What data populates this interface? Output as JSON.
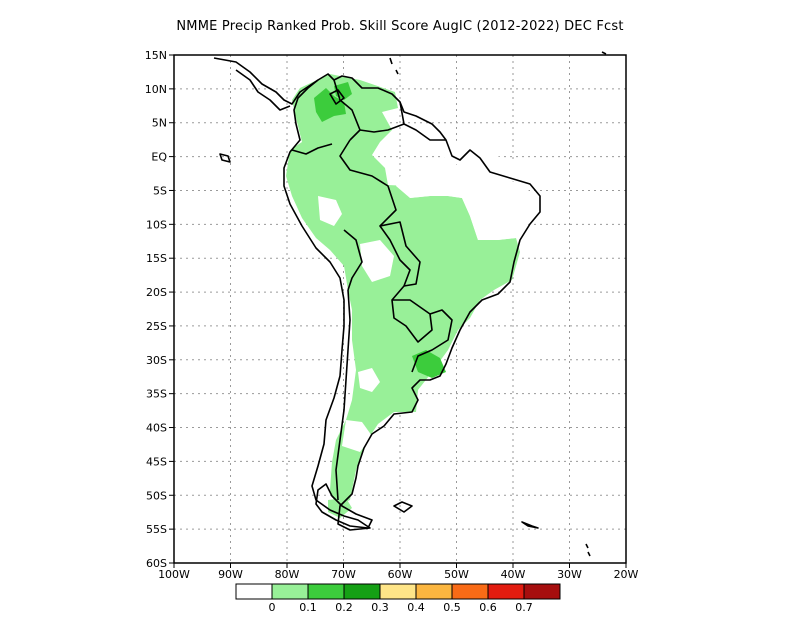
{
  "title": "NMME Precip Ranked Prob. Skill Score AugIC (2012-2022) DEC Fcst",
  "lat_labels": [
    "15N",
    "10N",
    "5N",
    "EQ",
    "5S",
    "10S",
    "15S",
    "20S",
    "25S",
    "30S",
    "35S",
    "40S",
    "45S",
    "50S",
    "55S",
    "60S"
  ],
  "lon_labels": [
    "100W",
    "90W",
    "80W",
    "70W",
    "60W",
    "50W",
    "40W",
    "30W",
    "20W"
  ],
  "colorbar": {
    "colors": [
      "#ffffff",
      "#98f098",
      "#3ccc3c",
      "#15a015",
      "#fee588",
      "#fbb640",
      "#f96b16",
      "#e21c10",
      "#a60e0e"
    ],
    "labels": [
      "0",
      "0.1",
      "0.2",
      "0.3",
      "0.4",
      "0.5",
      "0.6",
      "0.7"
    ]
  },
  "colors": {
    "land_outline": "#000000",
    "grid": "#9a9a9a",
    "skill_low": "#98f098",
    "skill_mid": "#3ccc3c",
    "skill_high": "#15a015"
  }
}
